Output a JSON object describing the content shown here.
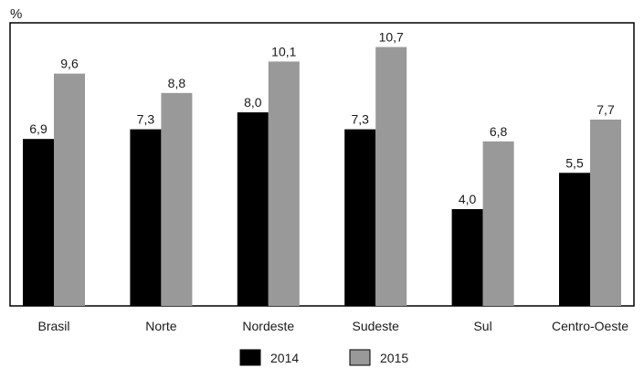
{
  "chart_data": {
    "type": "bar",
    "title": "",
    "ylabel": "%",
    "xlabel": "",
    "categories": [
      "Brasil",
      "Norte",
      "Nordeste",
      "Sudeste",
      "Sul",
      "Centro-Oeste"
    ],
    "series": [
      {
        "name": "2014",
        "color": "#000000",
        "values": [
          6.9,
          7.3,
          8.0,
          7.3,
          4.0,
          5.5
        ],
        "labels": [
          "6,9",
          "7,3",
          "8,0",
          "7,3",
          "4,0",
          "5,5"
        ]
      },
      {
        "name": "2015",
        "color": "#999999",
        "values": [
          9.6,
          8.8,
          10.1,
          10.7,
          6.8,
          7.7
        ],
        "labels": [
          "9,6",
          "8,8",
          "10,1",
          "10,7",
          "6,8",
          "7,7"
        ]
      }
    ],
    "ylim": [
      0,
      11.7
    ],
    "grid": false,
    "legend": "bottom-center"
  }
}
